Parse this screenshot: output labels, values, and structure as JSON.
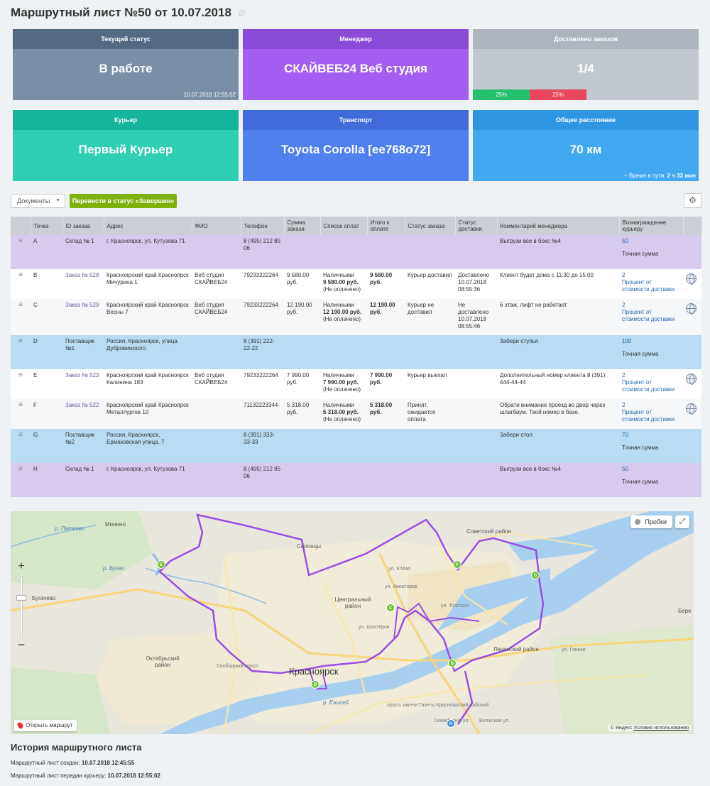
{
  "page": {
    "title": "Маршрутный лист №50 от 10.07.2018"
  },
  "tiles": {
    "status": {
      "label": "Текущий статус",
      "value": "В работе",
      "sub": "10.07.2018 12:55:02"
    },
    "manager": {
      "label": "Менеджер",
      "value": "СКАЙВЕБ24 Веб студия"
    },
    "delivered": {
      "label": "Доставлено заказов",
      "value": "1/4",
      "progress_green": "25%",
      "progress_red": "25%"
    },
    "courier": {
      "label": "Курьер",
      "value": "Первый Курьер"
    },
    "transport": {
      "label": "Транспорт",
      "value": "Toyota Corolla [ee768o72]"
    },
    "distance": {
      "label": "Общее расстояние",
      "value": "70 км",
      "sub_prefix": "~ Время в пути: ",
      "sub_value": "2 ч 33 мин"
    }
  },
  "toolbar": {
    "documents_label": "Документы",
    "complete_label": "Перевести в статус «Завершен»"
  },
  "table": {
    "headers": [
      "Точка",
      "ID заказа",
      "Адрес",
      "ФИО",
      "Телефон",
      "Сумма заказа",
      "Список оплат",
      "Итого к оплате",
      "Статус заказа",
      "Статус доставки",
      "Комментарий менеджера",
      "Вознаграждение курьеру"
    ],
    "rows": [
      {
        "point": "A",
        "order": "Склад № 1",
        "address": "г. Красноярск, ул. Кутузова 71",
        "name": "",
        "phone": "8 (495) 212 85 06",
        "sum": "",
        "pay_method": "",
        "pay_amount": "",
        "pay_status": "",
        "total": "",
        "order_status": "",
        "delivery_status": "",
        "comment": "Выгрузи все в бокс №4",
        "reward": "50",
        "reward_type": "Точная сумма"
      },
      {
        "point": "B",
        "order": "Заказ № 528",
        "address": "Красноярский край Красноярск Мичурина 1",
        "name": "Веб студия СКАЙВЕБ24",
        "phone": "79233222264",
        "sum": "9 580.00 руб.",
        "pay_method": "Наличными",
        "pay_amount": "9 580.00 руб.",
        "pay_status": "(Не оплачено)",
        "total": "9 580.00 руб.",
        "order_status": "Курьер доставил",
        "delivery_status": "Доставлено 10.07.2018 08:55:36",
        "comment": "Клиент будет дома с 11:30 до 15:00",
        "reward": "2",
        "reward_type": "Процент от стоимости доставки"
      },
      {
        "point": "C",
        "order": "Заказ № 529",
        "address": "Красноярский край Красноярск Весны 7",
        "name": "Веб студия СКАЙВЕБ24",
        "phone": "79233222264",
        "sum": "12 190.00 руб.",
        "pay_method": "Наличными",
        "pay_amount": "12 190.00 руб.",
        "pay_status": "(Не оплачено)",
        "total": "12 190.00 руб.",
        "order_status": "Курьер не доставил",
        "delivery_status": "Не доставлено 10.07.2018 08:55:46",
        "comment": "6 этаж, лифт не работает",
        "reward": "2",
        "reward_type": "Процент от стоимости доставки"
      },
      {
        "point": "D",
        "order": "Поставщик №1",
        "address": "Россия, Красноярск, улица Дубровинского",
        "name": "",
        "phone": "8 (391) 222-22-22",
        "sum": "",
        "pay_method": "",
        "pay_amount": "",
        "pay_status": "",
        "total": "",
        "order_status": "",
        "delivery_status": "",
        "comment": "Забери стулья",
        "reward": "100",
        "reward_type": "Точная сумма"
      },
      {
        "point": "E",
        "order": "Заказ № 523",
        "address": "Красноярский край Красноярск Калинина 183",
        "name": "Веб студия СКАЙВЕБ24",
        "phone": "79233222264",
        "sum": "7 990.00 руб.",
        "pay_method": "Наличными",
        "pay_amount": "7 990.00 руб.",
        "pay_status": "(Не оплачено)",
        "total": "7 990.00 руб.",
        "order_status": "Курьер выехал",
        "delivery_status": "",
        "comment": "Дополнительный номер клиента 8 (391) 444-44-44",
        "reward": "2",
        "reward_type": "Процент от стоимости доставки"
      },
      {
        "point": "F",
        "order": "Заказ № 522",
        "address": "Красноярский край Красноярск Металлургов 10",
        "name": "",
        "phone": "71132223344",
        "sum": "5 318.00 руб.",
        "pay_method": "Наличными",
        "pay_amount": "5 318.00 руб.",
        "pay_status": "(Не оплачено)",
        "total": "5 318.00 руб.",
        "order_status": "Принят, ожидается оплата",
        "delivery_status": "",
        "comment": "Обрати внимание проезд во двор через шлагбаум. Твой номер в базе.",
        "reward": "2",
        "reward_type": "Процент от стоимости доставки"
      },
      {
        "point": "G",
        "order": "Поставщик №2",
        "address": "Россия, Красноярск, Ермаковская улица, 7",
        "name": "",
        "phone": "8 (391) 333-33-33",
        "sum": "",
        "pay_method": "",
        "pay_amount": "",
        "pay_status": "",
        "total": "",
        "order_status": "",
        "delivery_status": "",
        "comment": "Забери стол",
        "reward": "70",
        "reward_type": "Точная сумма"
      },
      {
        "point": "H",
        "order": "Склад № 1",
        "address": "г. Красноярск, ул. Кутузова 71",
        "name": "",
        "phone": "8 (495) 212 85 06",
        "sum": "",
        "pay_method": "",
        "pay_amount": "",
        "pay_status": "",
        "total": "",
        "order_status": "",
        "delivery_status": "",
        "comment": "Выгрузи все в бокс №4",
        "reward": "50",
        "reward_type": "Точная сумма"
      }
    ]
  },
  "map": {
    "traffic_label": "Пробки",
    "open_route_label": "Открыть маршрут",
    "copyright_prefix": "© Яндекс",
    "copyright_link": "Условия использования",
    "labels": {
      "minino": "Минино",
      "solontsy": "Солонцы",
      "sovetsky": "Советский район",
      "bugachevo": "Бугачево",
      "central": "Центральный район",
      "oktyabrsky": "Октябрьский район",
      "krasnoyarsk": "Красноярск",
      "leninsky": "Ленинский район",
      "bugach": "р. Бугач",
      "pyatkovo": "р. Пятково",
      "yenisei": "р. Енисей",
      "gazety": "просп. имени Газеты Красноярский рабочий",
      "semaforna": "Семафорна ул.",
      "volzhskaya": "Волжская ул.",
      "glinki": "ул. Глинки",
      "may9": "ул. 9 Мая",
      "aviatorov": "ул. Авиаторов",
      "shakhterov": "ул. Шахтёров",
      "svobodny": "Свободный просп.",
      "tolstogo": "ул. Толстого",
      "bere": "Бере"
    },
    "markers": [
      "E",
      "F",
      "G",
      "C",
      "B",
      "D",
      "H"
    ]
  },
  "history": {
    "title": "История маршрутного листа",
    "created_label": "Маршрутный лист создан:",
    "created_value": "10.07.2018 12:45:55",
    "sent_label": "Маршрутный лист передан курьеру:",
    "sent_value": "10.07.2018 12:55:02"
  },
  "colors": {
    "status": "#7a8ea5",
    "manager": "#a15ef0",
    "delivered": "#c2c8d0",
    "courier": "#2fcfb3",
    "transport": "#4f80ef",
    "distance": "#42a8f0",
    "complete_button": "#7fb10c",
    "route": "#9a4fe0"
  }
}
